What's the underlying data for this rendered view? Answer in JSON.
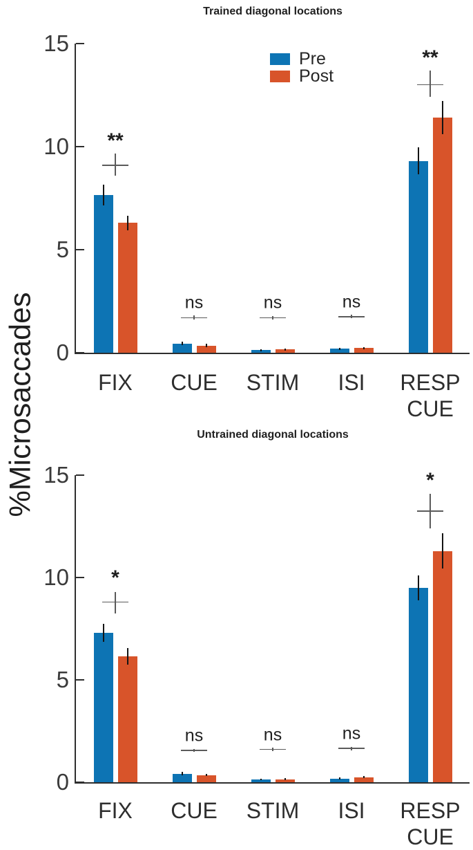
{
  "ylabel": "%Microsaccades",
  "legend": {
    "items": [
      {
        "label": "Pre",
        "color": "#0d74b4"
      },
      {
        "label": "Post",
        "color": "#d8542a"
      }
    ],
    "position": "top-center-of-first-chart"
  },
  "colors": {
    "pre": "#0d74b4",
    "post": "#d8542a",
    "axis": "#2e2e2e",
    "tick_label": "#3a3a3a",
    "title": "#1f1f1f",
    "marker_cross": "#5a5a5a",
    "error_bar": "#141414",
    "background": "#ffffff"
  },
  "chart_data": [
    {
      "type": "bar",
      "title": "Trained diagonal locations",
      "ylabel": "%Microsaccades",
      "xlabel": "",
      "ylim": [
        0,
        15
      ],
      "yticks": [
        0,
        5,
        10,
        15
      ],
      "grid": false,
      "categories": [
        "FIX",
        "CUE",
        "STIM",
        "ISI",
        "RESP\nCUE"
      ],
      "series": [
        {
          "name": "Pre",
          "color": "#0d74b4",
          "values": [
            7.65,
            0.45,
            0.13,
            0.2,
            9.3
          ],
          "errors": [
            0.5,
            0.08,
            0.05,
            0.05,
            0.65
          ]
        },
        {
          "name": "Post",
          "color": "#d8542a",
          "values": [
            6.3,
            0.35,
            0.16,
            0.22,
            11.4
          ],
          "errors": [
            0.35,
            0.07,
            0.05,
            0.05,
            0.8
          ]
        }
      ],
      "significance": [
        {
          "label": "**",
          "text_y": 10.45,
          "cross": {
            "y": 9.1,
            "lo": 8.6,
            "hi": 9.65
          }
        },
        {
          "label": "ns",
          "text_y": 2.4,
          "cross": {
            "y": 1.7,
            "lo": 1.6,
            "hi": 1.8
          }
        },
        {
          "label": "ns",
          "text_y": 2.4,
          "cross": {
            "y": 1.7,
            "lo": 1.62,
            "hi": 1.78
          }
        },
        {
          "label": "ns",
          "text_y": 2.45,
          "cross": {
            "y": 1.75,
            "lo": 1.67,
            "hi": 1.83
          }
        },
        {
          "label": "**",
          "text_y": 14.45,
          "cross": {
            "y": 13.0,
            "lo": 12.4,
            "hi": 13.7
          }
        }
      ]
    },
    {
      "type": "bar",
      "title": "Untrained diagonal locations",
      "ylabel": "%Microsaccades",
      "xlabel": "",
      "ylim": [
        0,
        15
      ],
      "yticks": [
        0,
        5,
        10,
        15
      ],
      "grid": false,
      "categories": [
        "FIX",
        "CUE",
        "STIM",
        "ISI",
        "RESP\nCUE"
      ],
      "series": [
        {
          "name": "Pre",
          "color": "#0d74b4",
          "values": [
            7.3,
            0.42,
            0.13,
            0.18,
            9.5
          ],
          "errors": [
            0.45,
            0.07,
            0.04,
            0.05,
            0.6
          ]
        },
        {
          "name": "Post",
          "color": "#d8542a",
          "values": [
            6.15,
            0.35,
            0.15,
            0.25,
            11.3
          ],
          "errors": [
            0.4,
            0.06,
            0.04,
            0.05,
            0.85
          ]
        }
      ],
      "significance": [
        {
          "label": "*",
          "text_y": 10.15,
          "cross": {
            "y": 8.8,
            "lo": 8.25,
            "hi": 9.3
          }
        },
        {
          "label": "ns",
          "text_y": 2.25,
          "cross": {
            "y": 1.55,
            "lo": 1.47,
            "hi": 1.63
          }
        },
        {
          "label": "ns",
          "text_y": 2.3,
          "cross": {
            "y": 1.6,
            "lo": 1.52,
            "hi": 1.68
          }
        },
        {
          "label": "ns",
          "text_y": 2.35,
          "cross": {
            "y": 1.65,
            "lo": 1.57,
            "hi": 1.73
          }
        },
        {
          "label": "*",
          "text_y": 14.9,
          "cross": {
            "y": 13.25,
            "lo": 12.4,
            "hi": 14.1
          }
        }
      ]
    }
  ]
}
